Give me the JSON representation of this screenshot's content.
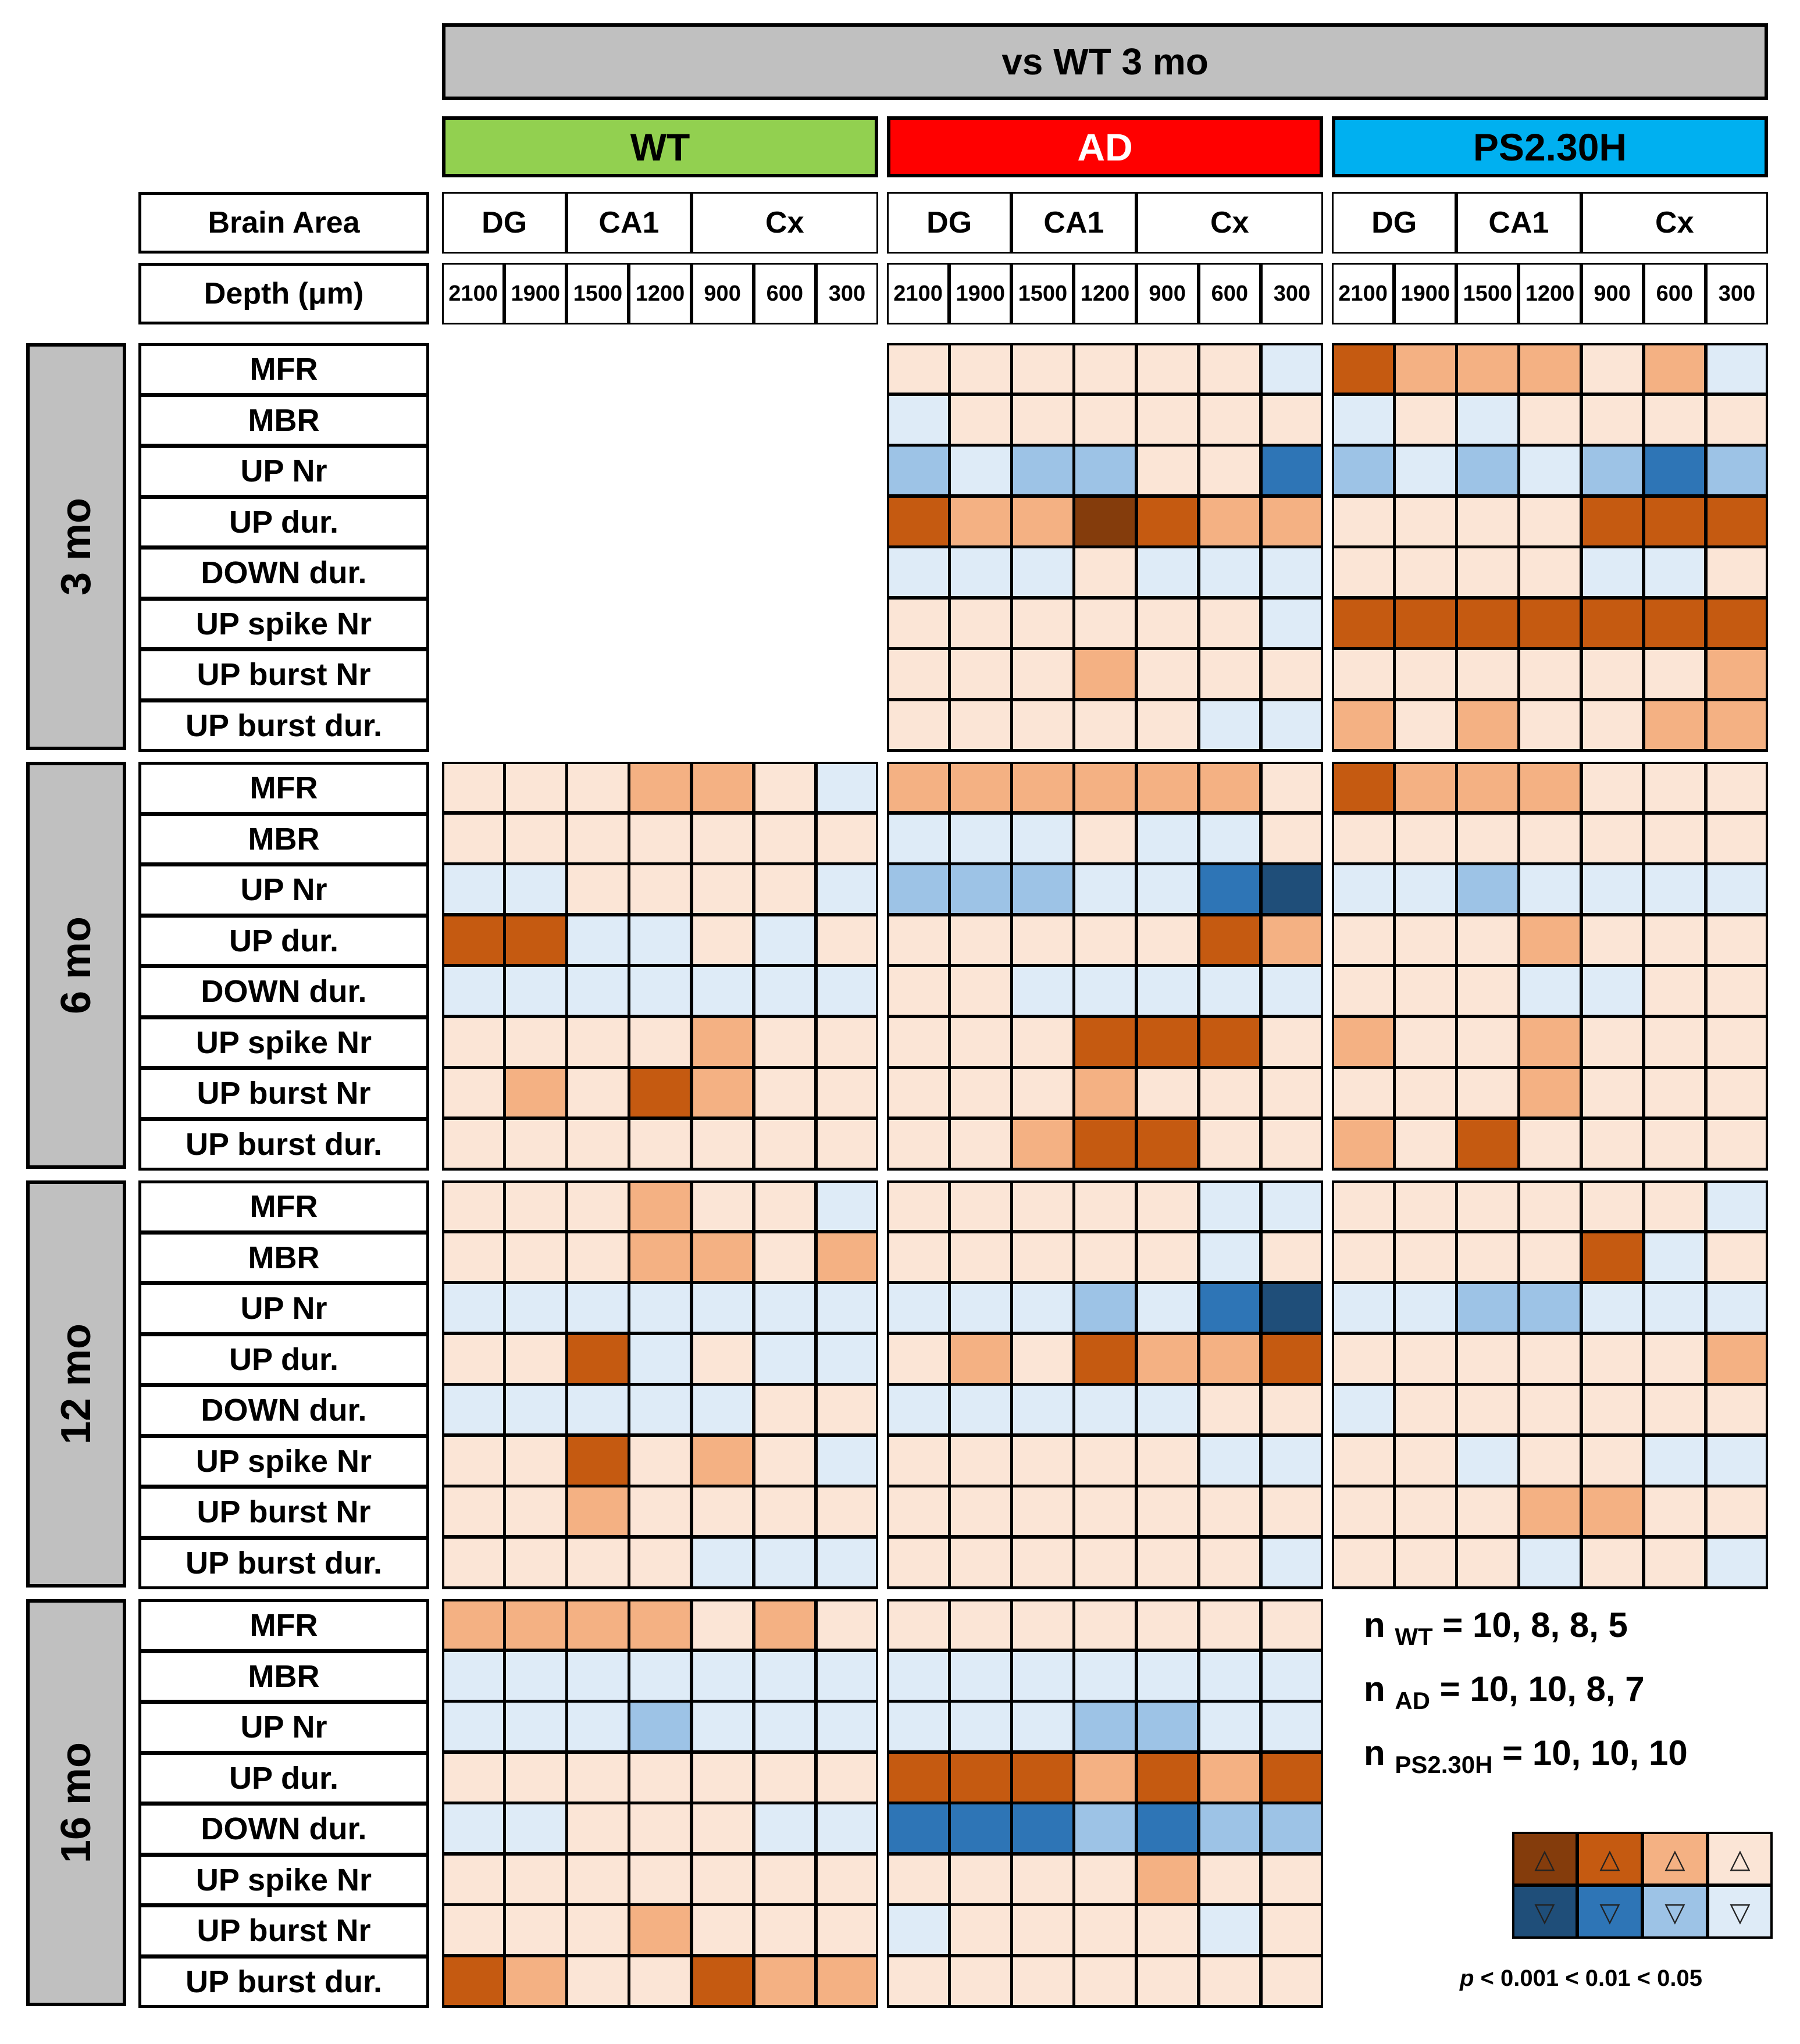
{
  "title": "vs WT 3 mo",
  "groups": [
    {
      "label": "WT",
      "color": "#92d050",
      "text_color": "#000000"
    },
    {
      "label": "AD",
      "color": "#ff0000",
      "text_color": "#ffffff"
    },
    {
      "label": "PS2.30H",
      "color": "#00b0f0",
      "text_color": "#000000"
    }
  ],
  "brain_area_label": "Brain Area",
  "depth_label": "Depth (μm)",
  "brain_areas": [
    "DG",
    "CA1",
    "Cx"
  ],
  "depths": [
    "2100",
    "1900",
    "1500",
    "1200",
    "900",
    "600",
    "300"
  ],
  "age_labels": [
    "3 mo",
    "6 mo",
    "12 mo",
    "16 mo"
  ],
  "parameters": [
    "MFR",
    "MBR",
    "UP Nr",
    "UP dur.",
    "DOWN dur.",
    "UP spike Nr",
    "UP burst Nr",
    "UP burst dur."
  ],
  "colors": {
    "up3": "#843c0c",
    "up2": "#c55a11",
    "up1": "#f4b183",
    "up0": "#fbe5d6",
    "dn3": "#1f4e79",
    "dn2": "#2e75b6",
    "dn1": "#9dc3e6",
    "dn0": "#deebf7"
  },
  "n_text": [
    {
      "prefix": "n",
      "sub": "WT",
      "value": "= 10, 8, 8, 5"
    },
    {
      "prefix": "n",
      "sub": "AD",
      "value": "= 10, 10, 8, 7"
    },
    {
      "prefix": "n",
      "sub": "PS2.30H",
      "value": "= 10, 10, 10"
    }
  ],
  "legend": {
    "up_symbol": "△",
    "down_symbol": "▽",
    "caption_p": "p",
    "caption": " < 0.001 < 0.01 < 0.05"
  },
  "chart_data": {
    "type": "heatmap",
    "title": "vs WT 3 mo",
    "encoding": "u = increase vs WT 3 mo, d = decrease; level 3: p<0.001, 2: p<0.01, 1: p<0.05, 0: not significant",
    "x_groups": [
      "WT",
      "AD",
      "PS2.30H"
    ],
    "x_depths": [
      "2100",
      "1900",
      "1500",
      "1200",
      "900",
      "600",
      "300"
    ],
    "y_ages": [
      "3 mo",
      "6 mo",
      "12 mo",
      "16 mo"
    ],
    "y_parameters": [
      "MFR",
      "MBR",
      "UP Nr",
      "UP dur.",
      "DOWN dur.",
      "UP spike Nr",
      "UP burst Nr",
      "UP burst dur."
    ],
    "matrices": {
      "3 mo": {
        "WT": null,
        "AD": [
          [
            "u0",
            "u0",
            "u0",
            "u0",
            "u0",
            "u0",
            "d0"
          ],
          [
            "d0",
            "u0",
            "u0",
            "u0",
            "u0",
            "u0",
            "u0"
          ],
          [
            "d1",
            "d0",
            "d1",
            "d1",
            "u0",
            "u0",
            "d2"
          ],
          [
            "u2",
            "u1",
            "u1",
            "u3",
            "u2",
            "u1",
            "u1"
          ],
          [
            "d0",
            "d0",
            "d0",
            "u0",
            "d0",
            "d0",
            "d0"
          ],
          [
            "u0",
            "u0",
            "u0",
            "u0",
            "u0",
            "u0",
            "d0"
          ],
          [
            "u0",
            "u0",
            "u0",
            "u1",
            "u0",
            "u0",
            "u0"
          ],
          [
            "u0",
            "u0",
            "u0",
            "u0",
            "u0",
            "d0",
            "d0"
          ]
        ],
        "PS2.30H": [
          [
            "u2",
            "u1",
            "u1",
            "u1",
            "u0",
            "u1",
            "d0"
          ],
          [
            "d0",
            "u0",
            "d0",
            "u0",
            "u0",
            "u0",
            "u0"
          ],
          [
            "d1",
            "d0",
            "d1",
            "d0",
            "d1",
            "d2",
            "d1"
          ],
          [
            "u0",
            "u0",
            "u0",
            "u0",
            "u2",
            "u2",
            "u2"
          ],
          [
            "u0",
            "u0",
            "u0",
            "u0",
            "d0",
            "d0",
            "u0"
          ],
          [
            "u2",
            "u2",
            "u2",
            "u2",
            "u2",
            "u2",
            "u2"
          ],
          [
            "u0",
            "u0",
            "u0",
            "u0",
            "u0",
            "u0",
            "u1"
          ],
          [
            "u1",
            "u0",
            "u1",
            "u0",
            "u0",
            "u1",
            "u1"
          ]
        ]
      },
      "6 mo": {
        "WT": [
          [
            "u0",
            "u0",
            "u0",
            "u1",
            "u1",
            "u0",
            "d0"
          ],
          [
            "u0",
            "u0",
            "u0",
            "u0",
            "u0",
            "u0",
            "u0"
          ],
          [
            "d0",
            "d0",
            "u0",
            "u0",
            "u0",
            "u0",
            "d0"
          ],
          [
            "u2",
            "u2",
            "d0",
            "d0",
            "u0",
            "d0",
            "u0"
          ],
          [
            "d0",
            "d0",
            "d0",
            "d0",
            "d0",
            "d0",
            "d0"
          ],
          [
            "u0",
            "u0",
            "u0",
            "u0",
            "u1",
            "u0",
            "u0"
          ],
          [
            "u0",
            "u1",
            "u0",
            "u2",
            "u1",
            "u0",
            "u0"
          ],
          [
            "u0",
            "u0",
            "u0",
            "u0",
            "u0",
            "u0",
            "u0"
          ]
        ],
        "AD": [
          [
            "u1",
            "u1",
            "u1",
            "u1",
            "u1",
            "u1",
            "u0"
          ],
          [
            "d0",
            "d0",
            "d0",
            "u0",
            "d0",
            "d0",
            "u0"
          ],
          [
            "d1",
            "d1",
            "d1",
            "d0",
            "d0",
            "d2",
            "d3"
          ],
          [
            "u0",
            "u0",
            "u0",
            "u0",
            "u0",
            "u2",
            "u1"
          ],
          [
            "u0",
            "u0",
            "d0",
            "d0",
            "d0",
            "d0",
            "d0"
          ],
          [
            "u0",
            "u0",
            "u0",
            "u2",
            "u2",
            "u2",
            "u0"
          ],
          [
            "u0",
            "u0",
            "u0",
            "u1",
            "u0",
            "u0",
            "u0"
          ],
          [
            "u0",
            "u0",
            "u1",
            "u2",
            "u2",
            "u0",
            "u0"
          ]
        ],
        "PS2.30H": [
          [
            "u2",
            "u1",
            "u1",
            "u1",
            "u0",
            "u0",
            "u0"
          ],
          [
            "u0",
            "u0",
            "u0",
            "u0",
            "u0",
            "u0",
            "u0"
          ],
          [
            "d0",
            "d0",
            "d1",
            "d0",
            "d0",
            "d0",
            "d0"
          ],
          [
            "u0",
            "u0",
            "u0",
            "u1",
            "u0",
            "u0",
            "u0"
          ],
          [
            "u0",
            "u0",
            "u0",
            "d0",
            "d0",
            "u0",
            "u0"
          ],
          [
            "u1",
            "u0",
            "u0",
            "u1",
            "u0",
            "u0",
            "u0"
          ],
          [
            "u0",
            "u0",
            "u0",
            "u1",
            "u0",
            "u0",
            "u0"
          ],
          [
            "u1",
            "u0",
            "u2",
            "u0",
            "u0",
            "u0",
            "u0"
          ]
        ]
      },
      "12 mo": {
        "WT": [
          [
            "u0",
            "u0",
            "u0",
            "u1",
            "u0",
            "u0",
            "d0"
          ],
          [
            "u0",
            "u0",
            "u0",
            "u1",
            "u1",
            "u0",
            "u1"
          ],
          [
            "d0",
            "d0",
            "d0",
            "d0",
            "d0",
            "d0",
            "d0"
          ],
          [
            "u0",
            "u0",
            "u2",
            "d0",
            "u0",
            "d0",
            "d0"
          ],
          [
            "d0",
            "d0",
            "d0",
            "d0",
            "d0",
            "u0",
            "u0"
          ],
          [
            "u0",
            "u0",
            "u2",
            "u0",
            "u1",
            "u0",
            "d0"
          ],
          [
            "u0",
            "u0",
            "u1",
            "u0",
            "u0",
            "u0",
            "u0"
          ],
          [
            "u0",
            "u0",
            "u0",
            "u0",
            "d0",
            "d0",
            "d0"
          ]
        ],
        "AD": [
          [
            "u0",
            "u0",
            "u0",
            "u0",
            "u0",
            "d0",
            "d0"
          ],
          [
            "u0",
            "u0",
            "u0",
            "u0",
            "u0",
            "d0",
            "u0"
          ],
          [
            "d0",
            "d0",
            "d0",
            "d1",
            "d0",
            "d2",
            "d3"
          ],
          [
            "u0",
            "u1",
            "u0",
            "u2",
            "u1",
            "u1",
            "u2"
          ],
          [
            "d0",
            "d0",
            "d0",
            "d0",
            "d0",
            "u0",
            "u0"
          ],
          [
            "u0",
            "u0",
            "u0",
            "u0",
            "u0",
            "d0",
            "d0"
          ],
          [
            "u0",
            "u0",
            "u0",
            "u0",
            "u0",
            "u0",
            "u0"
          ],
          [
            "u0",
            "u0",
            "u0",
            "u0",
            "u0",
            "u0",
            "d0"
          ]
        ],
        "PS2.30H": [
          [
            "u0",
            "u0",
            "u0",
            "u0",
            "u0",
            "u0",
            "d0"
          ],
          [
            "u0",
            "u0",
            "u0",
            "u0",
            "u2",
            "d0",
            "u0"
          ],
          [
            "d0",
            "d0",
            "d1",
            "d1",
            "d0",
            "d0",
            "d0"
          ],
          [
            "u0",
            "u0",
            "u0",
            "u0",
            "u0",
            "u0",
            "u1"
          ],
          [
            "d0",
            "u0",
            "u0",
            "u0",
            "u0",
            "u0",
            "u0"
          ],
          [
            "u0",
            "u0",
            "d0",
            "u0",
            "u0",
            "d0",
            "d0"
          ],
          [
            "u0",
            "u0",
            "u0",
            "u1",
            "u1",
            "u0",
            "u0"
          ],
          [
            "u0",
            "u0",
            "u0",
            "d0",
            "u0",
            "u0",
            "d0"
          ]
        ]
      },
      "16 mo": {
        "WT": [
          [
            "u1",
            "u1",
            "u1",
            "u1",
            "u0",
            "u1",
            "u0"
          ],
          [
            "d0",
            "d0",
            "d0",
            "d0",
            "d0",
            "d0",
            "d0"
          ],
          [
            "d0",
            "d0",
            "d0",
            "d1",
            "d0",
            "d0",
            "d0"
          ],
          [
            "u0",
            "u0",
            "u0",
            "u0",
            "u0",
            "u0",
            "u0"
          ],
          [
            "d0",
            "d0",
            "u0",
            "u0",
            "u0",
            "d0",
            "d0"
          ],
          [
            "u0",
            "u0",
            "u0",
            "u0",
            "u0",
            "u0",
            "u0"
          ],
          [
            "u0",
            "u0",
            "u0",
            "u1",
            "u0",
            "u0",
            "u0"
          ],
          [
            "u2",
            "u1",
            "u0",
            "u0",
            "u2",
            "u1",
            "u1"
          ]
        ],
        "AD": [
          [
            "u0",
            "u0",
            "u0",
            "u0",
            "u0",
            "u0",
            "u0"
          ],
          [
            "d0",
            "d0",
            "d0",
            "d0",
            "d0",
            "d0",
            "d0"
          ],
          [
            "d0",
            "d0",
            "d0",
            "d1",
            "d1",
            "d0",
            "d0"
          ],
          [
            "u2",
            "u2",
            "u2",
            "u1",
            "u2",
            "u1",
            "u2"
          ],
          [
            "d2",
            "d2",
            "d2",
            "d1",
            "d2",
            "d1",
            "d1"
          ],
          [
            "u0",
            "u0",
            "u0",
            "u0",
            "u1",
            "u0",
            "u0"
          ],
          [
            "d0",
            "u0",
            "u0",
            "u0",
            "u0",
            "d0",
            "u0"
          ],
          [
            "u0",
            "u0",
            "u0",
            "u0",
            "u0",
            "u0",
            "u0"
          ]
        ],
        "PS2.30H": null
      }
    }
  }
}
